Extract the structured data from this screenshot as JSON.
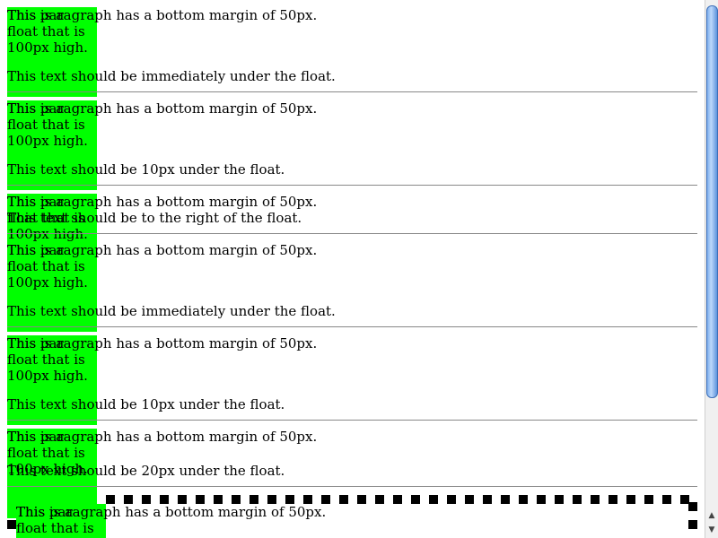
{
  "float_text": "This is a float that is 100px high.",
  "paragraph_text": "This paragraph has a bottom margin of 50px.",
  "tests": [
    {
      "follow_text": "This text should be immediately under the float."
    },
    {
      "follow_text": "This text should be 10px under the float."
    },
    {
      "follow_text": "This text should be to the right of the float."
    },
    {
      "follow_text": "This text should be immediately under the float."
    },
    {
      "follow_text": "This text should be 10px under the float."
    },
    {
      "follow_text": "This text should be 20px under the float."
    },
    {
      "follow_text": ""
    }
  ],
  "colors": {
    "float": "#00ff00",
    "rule": "#888888",
    "scroll_thumb": "#7fb0ee"
  },
  "scrollbar": {
    "up_icon": "▲",
    "down_icon": "▼"
  }
}
